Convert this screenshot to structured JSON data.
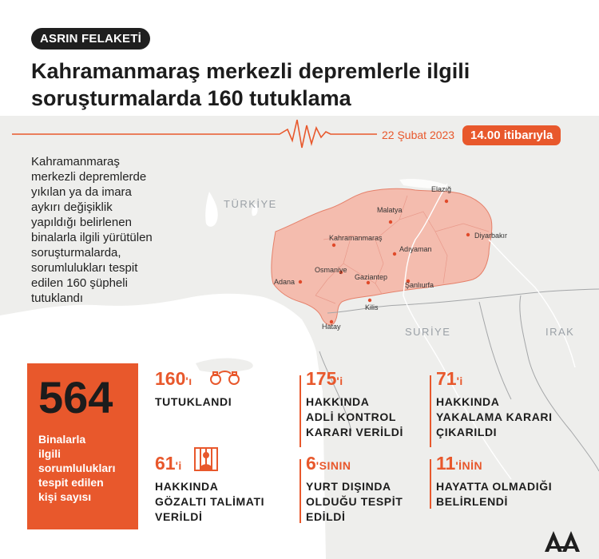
{
  "header": {
    "badge": "ASRIN FELAKETİ",
    "title_line1": "Kahramanmaraş merkezli depremlerle ilgili",
    "title_line2": "soruşturmalarda 160 tutuklama",
    "date": "22 Şubat 2023",
    "time": "14.00 itibarıyla"
  },
  "intro": [
    "Kahramanmaraş",
    "merkezli depremlerde",
    "yıkılan ya da imara",
    "aykırı değişiklik",
    "yapıldığı belirlenen",
    "binalarla ilgili yürütülen",
    "soruşturmalarda,",
    "sorumlulukları tespit",
    "edilen 160 şüpheli",
    "tutuklandı"
  ],
  "map": {
    "countries": [
      "TÜRKİYE",
      "SURİYE",
      "IRAK"
    ],
    "cities": [
      "Malatya",
      "Elazığ",
      "Kahramanmaraş",
      "Diyarbakır",
      "Adıyaman",
      "Osmaniye",
      "Adana",
      "Gaziantep",
      "Şanlıurfa",
      "Kilis",
      "Hatay"
    ],
    "colors": {
      "land": "#eeeeec",
      "sea": "#ffffff",
      "region": "#f4b3a3",
      "region_border": "#e5806a",
      "dot": "#e04a2a"
    }
  },
  "summary": {
    "number": "564",
    "caption": [
      "Binalarla",
      "ilgili",
      "sorumlulukları",
      "tespit edilen",
      "kişi sayısı"
    ]
  },
  "stats": [
    {
      "num": "160",
      "suffix": "'ı",
      "lines": [
        "TUTUKLANDI"
      ],
      "icon": "handcuffs-icon"
    },
    {
      "num": "175",
      "suffix": "'i",
      "lines": [
        "HAKKINDA",
        "ADLİ KONTROL",
        "KARARI VERİLDİ"
      ]
    },
    {
      "num": "71",
      "suffix": "'i",
      "lines": [
        "HAKKINDA",
        "YAKALAMA KARARI",
        "ÇIKARILDI"
      ]
    },
    {
      "num": "61",
      "suffix": "'i",
      "lines": [
        "HAKKINDA",
        "GÖZALTI TALİMATI",
        "VERİLDİ"
      ],
      "icon": "prisoner-icon"
    },
    {
      "num": "6",
      "suffix": "'SININ",
      "lines": [
        "YURT DIŞINDA",
        "OLDUĞU TESPİT",
        "EDİLDİ"
      ]
    },
    {
      "num": "11",
      "suffix": "'İNİN",
      "lines": [
        "HAYATTA OLMADIĞI",
        "BELİRLENDİ"
      ]
    }
  ],
  "logo": "AA",
  "colors": {
    "accent": "#e8582c",
    "text": "#1c1c1c"
  }
}
